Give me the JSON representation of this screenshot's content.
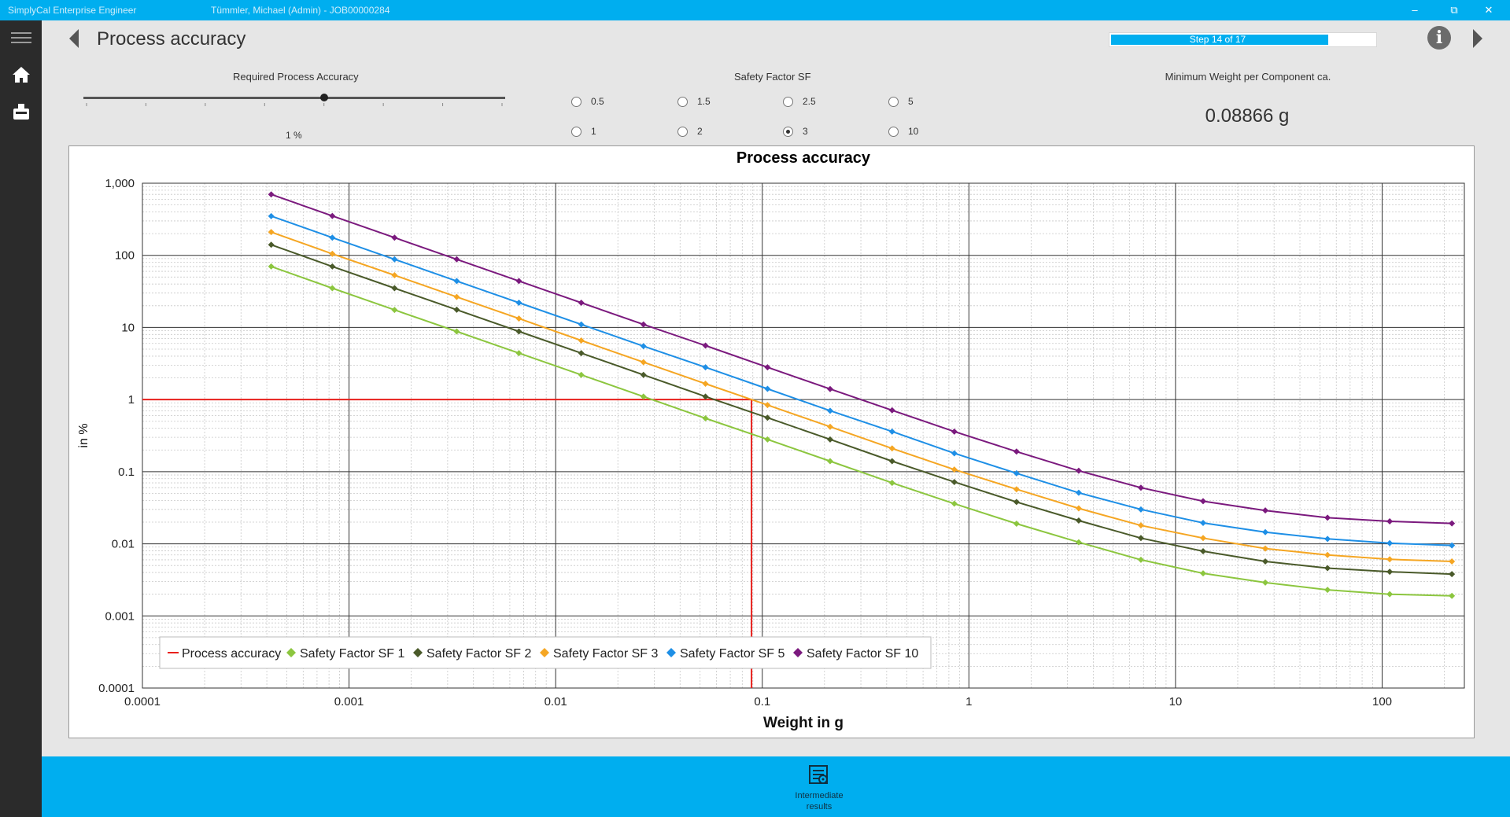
{
  "window": {
    "app_title": "SimplyCal Enterprise Engineer",
    "user_job": "Tümmler, Michael (Admin) - JOB00000284",
    "minimize_glyph": "–",
    "restore_glyph": "⧉",
    "close_glyph": "✕"
  },
  "sidebar": {
    "items": [
      {
        "name": "menu",
        "icon": "hamburger-icon"
      },
      {
        "name": "home",
        "icon": "home-icon"
      },
      {
        "name": "device",
        "icon": "scale-icon"
      }
    ]
  },
  "header": {
    "title": "Process accuracy",
    "step_text": "Step 14 of 17",
    "step_fraction": 0.8235,
    "info_glyph": "i"
  },
  "accuracy": {
    "label": "Required Process Accuracy",
    "value_text": "1 %",
    "slider_level": 0.57
  },
  "safety": {
    "label": "Safety Factor SF",
    "options": [
      "0.5",
      "1.5",
      "2.5",
      "5",
      "1",
      "2",
      "3",
      "10"
    ],
    "selected": "3"
  },
  "min_weight": {
    "label": "Minimum Weight per Component ca.",
    "value": "0.08866 g"
  },
  "colors": {
    "accent": "#00aeef",
    "process": "#e8201c",
    "sf1": "#8cc63f",
    "sf2": "#4a5a2a",
    "sf3": "#f5a623",
    "sf5": "#1e8fe6",
    "sf10": "#7b1a7e"
  },
  "chart_data": {
    "type": "line",
    "title": "Process accuracy",
    "xlabel": "Weight in g",
    "ylabel": "in %",
    "x_scale": "log",
    "y_scale": "log",
    "xlim": [
      0.0001,
      250
    ],
    "ylim": [
      0.0001,
      1000
    ],
    "x_ticks": [
      "0.0001",
      "0.001",
      "0.01",
      "0.1",
      "1",
      "10",
      "100"
    ],
    "y_ticks": [
      "1,000",
      "100",
      "10",
      "1",
      "0.1",
      "0.01",
      "0.001",
      "0.0001"
    ],
    "grid": true,
    "legend_position": "bottom-left",
    "x": [
      0.00042,
      0.00083,
      0.00166,
      0.00332,
      0.00664,
      0.0133,
      0.0266,
      0.0531,
      0.106,
      0.213,
      0.425,
      0.85,
      1.7,
      3.4,
      6.8,
      13.6,
      27.2,
      54.4,
      108.8,
      217.6
    ],
    "series": [
      {
        "name": "Process accuracy",
        "color_key": "process",
        "x": [
          0.0001,
          0.0887,
          0.0887
        ],
        "values": [
          1,
          1,
          0.0001
        ]
      },
      {
        "name": "Safety Factor SF 1",
        "color_key": "sf1",
        "values": [
          70,
          35,
          17.5,
          8.8,
          4.4,
          2.2,
          1.1,
          0.55,
          0.28,
          0.14,
          0.07,
          0.036,
          0.019,
          0.0105,
          0.006,
          0.0039,
          0.0029,
          0.0023,
          0.002,
          0.0019
        ]
      },
      {
        "name": "Safety Factor SF 2",
        "color_key": "sf2",
        "values": [
          140,
          70,
          35,
          17.6,
          8.8,
          4.4,
          2.2,
          1.1,
          0.56,
          0.28,
          0.14,
          0.072,
          0.038,
          0.021,
          0.012,
          0.0079,
          0.0057,
          0.0046,
          0.0041,
          0.0038
        ]
      },
      {
        "name": "Safety Factor SF 3",
        "color_key": "sf3",
        "values": [
          210,
          105,
          53,
          26.5,
          13.3,
          6.6,
          3.3,
          1.66,
          0.84,
          0.42,
          0.21,
          0.107,
          0.057,
          0.031,
          0.018,
          0.012,
          0.0086,
          0.007,
          0.0061,
          0.0057
        ]
      },
      {
        "name": "Safety Factor SF 5",
        "color_key": "sf5",
        "values": [
          350,
          176,
          88,
          44,
          22,
          11,
          5.5,
          2.8,
          1.41,
          0.7,
          0.36,
          0.18,
          0.095,
          0.051,
          0.03,
          0.0195,
          0.0145,
          0.0117,
          0.0102,
          0.0095
        ]
      },
      {
        "name": "Safety Factor SF 10",
        "color_key": "sf10",
        "values": [
          700,
          352,
          176,
          88,
          44,
          22,
          11,
          5.6,
          2.8,
          1.4,
          0.71,
          0.36,
          0.19,
          0.103,
          0.06,
          0.039,
          0.029,
          0.023,
          0.0205,
          0.0192
        ]
      }
    ]
  },
  "bottom": {
    "intermediate_line1": "Intermediate",
    "intermediate_line2": "results"
  }
}
